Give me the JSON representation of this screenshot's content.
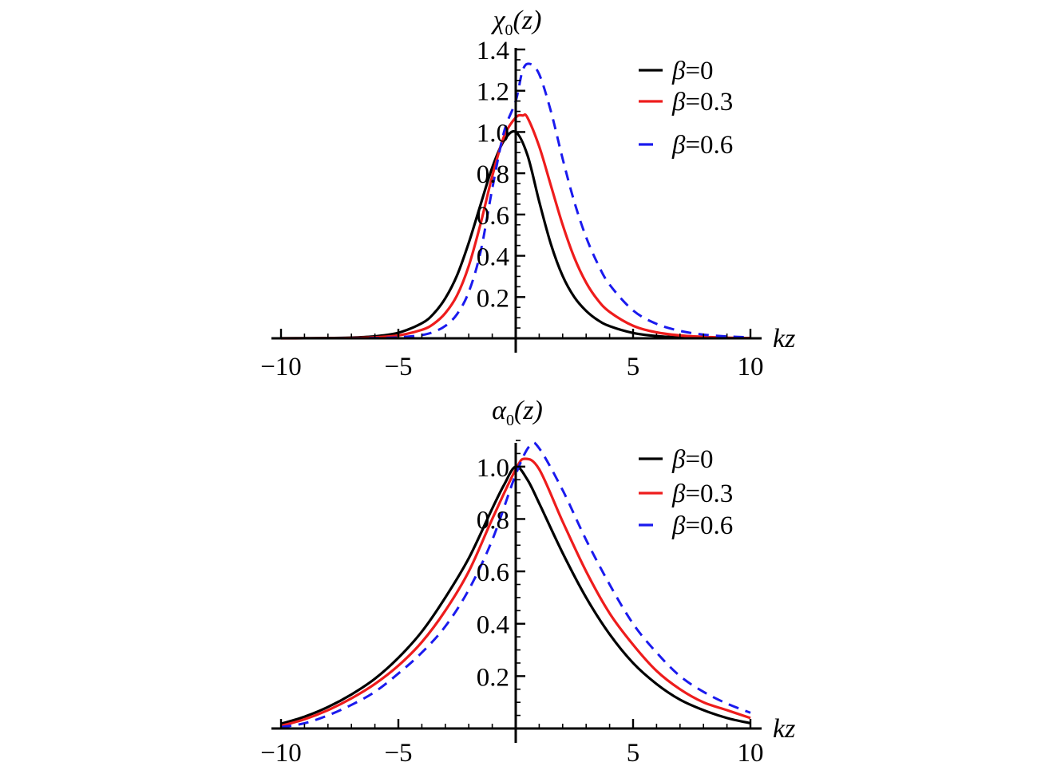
{
  "chart_data": [
    {
      "type": "line",
      "title": "",
      "ylabel": "χ₀(z)",
      "ylabel_parts": {
        "main": "χ",
        "sub": "0",
        "arg": "(z)"
      },
      "xlabel": "kz",
      "xlim": [
        -10,
        10
      ],
      "ylim": [
        0,
        1.4
      ],
      "x_ticks": [
        "−10",
        "−5",
        "5",
        "10"
      ],
      "x_tick_values": [
        -10,
        -5,
        5,
        10
      ],
      "y_ticks": [
        "0.2",
        "0.4",
        "0.6",
        "0.8",
        "1.0",
        "1.2",
        "1.4"
      ],
      "y_tick_values": [
        0.2,
        0.4,
        0.6,
        0.8,
        1.0,
        1.2,
        1.4
      ],
      "legend_placement": "top-right",
      "grid": false,
      "series": [
        {
          "name": "β=0",
          "color": "#000000",
          "dash": "solid",
          "x": [
            -10,
            -9,
            -8,
            -7,
            -6,
            -5,
            -4,
            -3.5,
            -3,
            -2.5,
            -2,
            -1.5,
            -1,
            -0.5,
            0,
            0.5,
            1,
            1.5,
            2,
            2.5,
            3,
            3.5,
            4,
            5,
            6,
            7,
            8,
            9,
            10
          ],
          "y": [
            0.0002,
            0.0005,
            0.0013,
            0.0036,
            0.0099,
            0.027,
            0.073,
            0.119,
            0.194,
            0.305,
            0.463,
            0.647,
            0.828,
            0.958,
            1.0,
            0.888,
            0.663,
            0.456,
            0.302,
            0.199,
            0.133,
            0.088,
            0.059,
            0.026,
            0.011,
            0.005,
            0.002,
            0.001,
            0.0004
          ]
        },
        {
          "name": "β=0.3",
          "color": "#ee1c1c",
          "dash": "solid",
          "x": [
            -10,
            -9,
            -8,
            -7,
            -6,
            -5,
            -4,
            -3.5,
            -3,
            -2.5,
            -2,
            -1.5,
            -1,
            -0.5,
            0,
            0.3,
            0.5,
            1,
            1.5,
            2,
            2.5,
            3,
            3.5,
            4,
            5,
            6,
            7,
            8,
            9,
            10
          ],
          "y": [
            0.0001,
            0.0002,
            0.0006,
            0.0017,
            0.0049,
            0.014,
            0.041,
            0.07,
            0.122,
            0.208,
            0.351,
            0.554,
            0.786,
            0.978,
            1.07,
            1.08,
            1.07,
            0.93,
            0.74,
            0.55,
            0.39,
            0.27,
            0.185,
            0.128,
            0.061,
            0.029,
            0.014,
            0.007,
            0.003,
            0.0016
          ]
        },
        {
          "name": "β=0.6",
          "color": "#1a1aee",
          "dash": "dashed",
          "x": [
            -10,
            -9,
            -8,
            -7,
            -6,
            -5,
            -4,
            -3.5,
            -3,
            -2.5,
            -2,
            -1.5,
            -1,
            -0.5,
            0,
            0.3,
            0.6,
            1,
            1.5,
            2,
            2.5,
            3,
            3.5,
            4,
            5,
            6,
            7,
            8,
            9,
            10
          ],
          "y": [
            1e-05,
            3e-05,
            0.0001,
            0.0004,
            0.0013,
            0.0045,
            0.016,
            0.031,
            0.06,
            0.117,
            0.225,
            0.418,
            0.725,
            1.0,
            1.15,
            1.3,
            1.33,
            1.28,
            1.1,
            0.87,
            0.66,
            0.49,
            0.36,
            0.26,
            0.135,
            0.07,
            0.036,
            0.018,
            0.009,
            0.005
          ]
        }
      ]
    },
    {
      "type": "line",
      "title": "",
      "ylabel": "α₀(z)",
      "ylabel_parts": {
        "main": "α",
        "sub": "0",
        "arg": "(z)"
      },
      "xlabel": "kz",
      "xlim": [
        -10,
        10
      ],
      "ylim": [
        0,
        1.1
      ],
      "x_ticks": [
        "−10",
        "−5",
        "5",
        "10"
      ],
      "x_tick_values": [
        -10,
        -5,
        5,
        10
      ],
      "y_ticks": [
        "0.2",
        "0.4",
        "0.6",
        "0.8",
        "1.0"
      ],
      "y_tick_values": [
        0.2,
        0.4,
        0.6,
        0.8,
        1.0
      ],
      "legend_placement": "top-right",
      "grid": false,
      "series": [
        {
          "name": "β=0",
          "color": "#000000",
          "dash": "solid",
          "x": [
            -10,
            -9,
            -8,
            -7,
            -6,
            -5,
            -4,
            -3,
            -2,
            -1,
            -0.5,
            0,
            0.5,
            1,
            2,
            3,
            4,
            5,
            6,
            7,
            8,
            9,
            10
          ],
          "y": [
            0.018,
            0.045,
            0.082,
            0.13,
            0.19,
            0.27,
            0.37,
            0.5,
            0.65,
            0.84,
            0.93,
            1.0,
            0.95,
            0.86,
            0.67,
            0.5,
            0.36,
            0.25,
            0.17,
            0.11,
            0.07,
            0.04,
            0.02
          ]
        },
        {
          "name": "β=0.3",
          "color": "#ee1c1c",
          "dash": "solid",
          "x": [
            -10,
            -9,
            -8,
            -7,
            -6,
            -5,
            -4,
            -3,
            -2,
            -1,
            0,
            0.4,
            1,
            2,
            3,
            4,
            5,
            6,
            7,
            8,
            9,
            10
          ],
          "y": [
            0.01,
            0.035,
            0.07,
            0.115,
            0.17,
            0.24,
            0.33,
            0.45,
            0.6,
            0.8,
            0.99,
            1.03,
            0.99,
            0.79,
            0.6,
            0.44,
            0.32,
            0.22,
            0.15,
            0.1,
            0.07,
            0.04
          ]
        },
        {
          "name": "β=0.6",
          "color": "#1a1aee",
          "dash": "dashed",
          "x": [
            -10,
            -9,
            -8,
            -7,
            -6,
            -5,
            -4,
            -3,
            -2,
            -1,
            0,
            0.6,
            1,
            2,
            3,
            4,
            5,
            6,
            7,
            8,
            9,
            10
          ],
          "y": [
            0.005,
            0.02,
            0.05,
            0.09,
            0.14,
            0.21,
            0.29,
            0.39,
            0.53,
            0.72,
            0.97,
            1.08,
            1.07,
            0.91,
            0.72,
            0.55,
            0.4,
            0.29,
            0.2,
            0.14,
            0.095,
            0.06
          ]
        }
      ]
    }
  ]
}
